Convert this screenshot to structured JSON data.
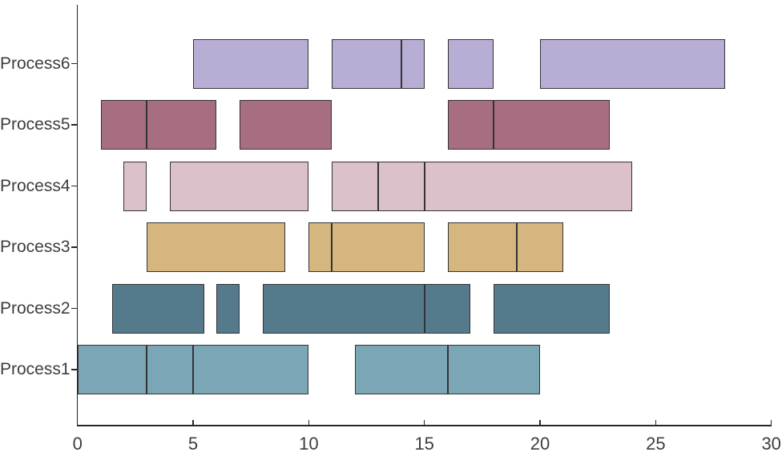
{
  "figure": {
    "background_color": "#ffffff",
    "axis_color": "#262626",
    "text_color": "#3d3d3d",
    "bar_edge_color": "#333333"
  },
  "chart_data": {
    "type": "bar",
    "subtype": "gantt",
    "orientation": "horizontal",
    "title": "",
    "xlabel": "",
    "ylabel": "",
    "grid": false,
    "legend": false,
    "xlim": [
      0,
      30
    ],
    "xticks": [
      0,
      5,
      10,
      15,
      20,
      25,
      30
    ],
    "categories_bottom_to_top": [
      "Process1",
      "Process2",
      "Process3",
      "Process4",
      "Process5",
      "Process6"
    ],
    "series": [
      {
        "name": "Process1",
        "color": "#7ba6b5",
        "segments": [
          [
            0,
            3
          ],
          [
            3,
            5
          ],
          [
            5,
            10
          ],
          [
            12,
            16
          ],
          [
            16,
            20
          ]
        ]
      },
      {
        "name": "Process2",
        "color": "#557a8c",
        "segments": [
          [
            1.5,
            5.5
          ],
          [
            6,
            7
          ],
          [
            8,
            15
          ],
          [
            15,
            17
          ],
          [
            18,
            23
          ]
        ]
      },
      {
        "name": "Process3",
        "color": "#d4b67e",
        "segments": [
          [
            3,
            9
          ],
          [
            10,
            11
          ],
          [
            11,
            15
          ],
          [
            16,
            19
          ],
          [
            19,
            21
          ]
        ]
      },
      {
        "name": "Process4",
        "color": "#dcc1ca",
        "segments": [
          [
            2,
            3
          ],
          [
            4,
            10
          ],
          [
            11,
            13
          ],
          [
            13,
            15
          ],
          [
            15,
            24
          ]
        ]
      },
      {
        "name": "Process5",
        "color": "#a76d81",
        "segments": [
          [
            1,
            3
          ],
          [
            3,
            6
          ],
          [
            7,
            11
          ],
          [
            16,
            18
          ],
          [
            18,
            23
          ]
        ]
      },
      {
        "name": "Process6",
        "color": "#b8aed5",
        "segments": [
          [
            5,
            10
          ],
          [
            11,
            14
          ],
          [
            14,
            15
          ],
          [
            16,
            18
          ],
          [
            20,
            28
          ]
        ]
      }
    ]
  }
}
